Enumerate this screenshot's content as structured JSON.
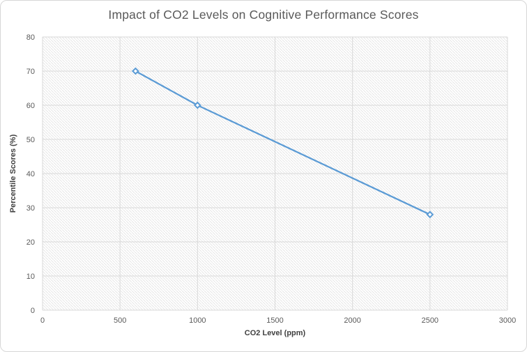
{
  "chart_data": {
    "type": "line",
    "title": "Impact of CO2 Levels on Cognitive Performance Scores",
    "xlabel": "CO2 Level (ppm)",
    "ylabel": "Percentile Scores (%)",
    "x": [
      600,
      1000,
      2500
    ],
    "y": [
      70,
      60,
      28
    ],
    "xlim": [
      0,
      3000
    ],
    "ylim": [
      0,
      80
    ],
    "x_ticks": [
      0,
      500,
      1000,
      1500,
      2000,
      2500,
      3000
    ],
    "y_ticks": [
      0,
      10,
      20,
      30,
      40,
      50,
      60,
      70,
      80
    ],
    "grid": true,
    "legend": false,
    "marker": "diamond",
    "plot_area_pattern": "light-downward-diagonal-hatch",
    "colors": {
      "line": "#5B9BD5",
      "marker_fill": "#FFFFFF",
      "marker_border": "#5B9BD5",
      "gridline": "#D9D9D9",
      "hatch": "#E7E7E7",
      "title_text": "#595959",
      "tick_text": "#595959",
      "axis_title_text": "#404040",
      "chart_border": "#D7D7D7",
      "background": "#FFFFFF"
    }
  }
}
